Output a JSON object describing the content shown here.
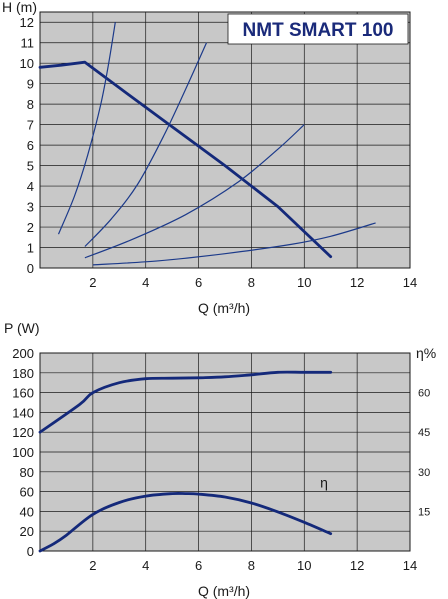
{
  "chart_data": [
    {
      "type": "line",
      "title": "NMT SMART 100",
      "ylabel": "H (m)",
      "xlabel": "Q (m³/h)",
      "xlim": [
        0,
        14
      ],
      "ylim": [
        0,
        12.5
      ],
      "x_ticks": [
        2,
        4,
        6,
        8,
        10,
        12,
        14
      ],
      "y_ticks": [
        0,
        1,
        2,
        3,
        4,
        5,
        6,
        7,
        8,
        9,
        10,
        11,
        12
      ],
      "grid": true,
      "series": [
        {
          "style": "thick",
          "x": [
            0,
            0.8,
            1.7,
            3,
            5,
            7,
            9,
            11
          ],
          "y": [
            9.8,
            9.9,
            10.05,
            8.8,
            6.9,
            5,
            3,
            0.55
          ]
        },
        {
          "style": "thin",
          "x": [
            0.7,
            1.3,
            1.8,
            2.3,
            2.6,
            2.85
          ],
          "y": [
            1.65,
            3.5,
            5.5,
            8,
            10,
            12
          ]
        },
        {
          "style": "thin",
          "x": [
            1.7,
            2.7,
            3.7,
            4.7,
            5.5,
            6.3
          ],
          "y": [
            1.05,
            2.4,
            4.1,
            6.5,
            8.7,
            11
          ]
        },
        {
          "style": "thin",
          "x": [
            1.7,
            3.5,
            5.5,
            7.5,
            9,
            10
          ],
          "y": [
            0.5,
            1.4,
            2.6,
            4.2,
            5.8,
            7
          ]
        },
        {
          "style": "thin",
          "x": [
            2,
            4.5,
            7,
            9.5,
            11,
            12.7
          ],
          "y": [
            0.15,
            0.35,
            0.7,
            1.15,
            1.55,
            2.2
          ]
        }
      ]
    },
    {
      "type": "line",
      "ylabel": "P (W)",
      "xlabel": "Q (m³/h)",
      "right_axis_label": "η%",
      "xlim": [
        0,
        14
      ],
      "ylim": [
        0,
        200
      ],
      "x_ticks": [
        2,
        4,
        6,
        8,
        10,
        12,
        14
      ],
      "y_ticks": [
        0,
        20,
        40,
        60,
        80,
        100,
        120,
        140,
        160,
        180,
        200
      ],
      "right_ticks": [
        15,
        30,
        45,
        60
      ],
      "right_lim": [
        0,
        75
      ],
      "grid": true,
      "series": [
        {
          "name": "P",
          "style": "thick",
          "x": [
            0,
            1.5,
            2,
            3,
            4,
            5,
            6,
            7,
            8,
            9,
            10,
            11
          ],
          "y": [
            120,
            148,
            160,
            170,
            174,
            174.5,
            175,
            176,
            178,
            180.5,
            180.5,
            180.5
          ]
        },
        {
          "name": "η",
          "style": "thick",
          "x": [
            0,
            0.5,
            1,
            2,
            3,
            4,
            5,
            5.5,
            6,
            7,
            8,
            9,
            10,
            11
          ],
          "y": [
            0,
            7,
            16,
            37,
            49,
            55.5,
            58,
            58,
            57.5,
            54.5,
            48.5,
            39.5,
            29,
            17.5
          ]
        }
      ],
      "annotations": [
        {
          "text": "η",
          "x": 10.6,
          "y": 26
        }
      ]
    }
  ]
}
